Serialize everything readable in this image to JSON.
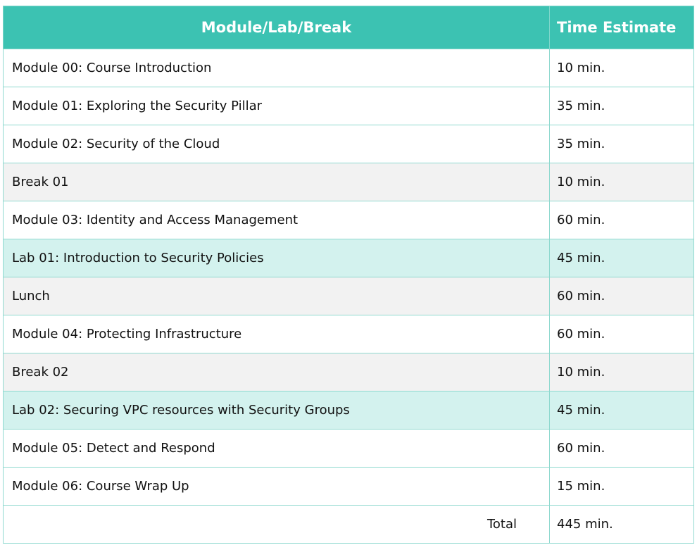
{
  "table": {
    "headers": {
      "module": "Module/Lab/Break",
      "time": "Time Estimate"
    },
    "rows": [
      {
        "name": "Module 00: Course Introduction",
        "time": "10 min."
      },
      {
        "name": "Module 01: Exploring the Security Pillar",
        "time": "35 min."
      },
      {
        "name": "Module 02: Security of the Cloud",
        "time": "35 min."
      },
      {
        "name": "Break 01",
        "time": "10 min."
      },
      {
        "name": "Module 03: Identity and Access Management",
        "time": "60 min."
      },
      {
        "name": "Lab 01: Introduction to Security Policies",
        "time": "45 min."
      },
      {
        "name": "Lunch",
        "time": "60 min."
      },
      {
        "name": "Module 04: Protecting Infrastructure",
        "time": "60 min."
      },
      {
        "name": "Break 02",
        "time": "10 min."
      },
      {
        "name": "Lab 02: Securing VPC resources with Security Groups",
        "time": "45 min."
      },
      {
        "name": "Module 05: Detect and Respond",
        "time": "60 min."
      },
      {
        "name": "Module 06: Course Wrap Up",
        "time": "15 min."
      }
    ],
    "total": {
      "label": "Total",
      "time": "445 min."
    }
  },
  "colors": {
    "header_bg": "#3cc2b2",
    "break_row_bg": "#f2f2f2",
    "lab_row_bg": "#d3f2ee",
    "border": "#8fd9cf"
  }
}
